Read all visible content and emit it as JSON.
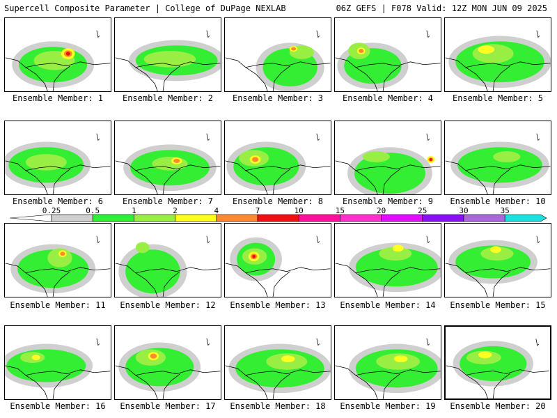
{
  "header": {
    "title": "Supercell Composite Parameter | College of DuPage NEXLAB",
    "run_info": "06Z GEFS | F078 Valid: 12Z MON JUN 09 2025"
  },
  "colors": {
    "gray": "#cfcfcf",
    "green": "#33ee33",
    "lightgreen": "#99ee44",
    "yellow": "#ffff22",
    "orange": "#ff8833",
    "red": "#ee1111",
    "pink": "#ff1199",
    "magenta": "#ff33cc",
    "violet": "#dd11ff",
    "purple": "#8811ee",
    "lavender": "#aa66dd",
    "cyan": "#22dddd"
  },
  "scale": {
    "labels": [
      "0.25",
      "0.5",
      "1",
      "2",
      "4",
      "7",
      "10",
      "15",
      "20",
      "25",
      "30",
      "35"
    ],
    "colors": [
      "#cfcfcf",
      "#33ee33",
      "#99ee44",
      "#ffff22",
      "#ff8833",
      "#ee1111",
      "#ff1199",
      "#ff33cc",
      "#dd11ff",
      "#8811ee",
      "#aa66dd",
      "#22dddd"
    ]
  },
  "members": [
    {
      "label": "Ensemble Member: 1",
      "intensity": 5
    },
    {
      "label": "Ensemble Member: 2",
      "intensity": 2
    },
    {
      "label": "Ensemble Member: 3",
      "intensity": 4
    },
    {
      "label": "Ensemble Member: 4",
      "intensity": 4
    },
    {
      "label": "Ensemble Member: 5",
      "intensity": 3
    },
    {
      "label": "Ensemble Member: 6",
      "intensity": 2
    },
    {
      "label": "Ensemble Member: 7",
      "intensity": 4
    },
    {
      "label": "Ensemble Member: 8",
      "intensity": 4
    },
    {
      "label": "Ensemble Member: 9",
      "intensity": 5
    },
    {
      "label": "Ensemble Member: 10",
      "intensity": 2
    },
    {
      "label": "Ensemble Member: 11",
      "intensity": 4
    },
    {
      "label": "Ensemble Member: 12",
      "intensity": 2
    },
    {
      "label": "Ensemble Member: 13",
      "intensity": 5
    },
    {
      "label": "Ensemble Member: 14",
      "intensity": 3
    },
    {
      "label": "Ensemble Member: 15",
      "intensity": 3
    },
    {
      "label": "Ensemble Member: 16",
      "intensity": 3
    },
    {
      "label": "Ensemble Member: 17",
      "intensity": 4
    },
    {
      "label": "Ensemble Member: 18",
      "intensity": 3
    },
    {
      "label": "Ensemble Member: 19",
      "intensity": 3
    },
    {
      "label": "Ensemble Member: 20",
      "intensity": 3
    }
  ]
}
